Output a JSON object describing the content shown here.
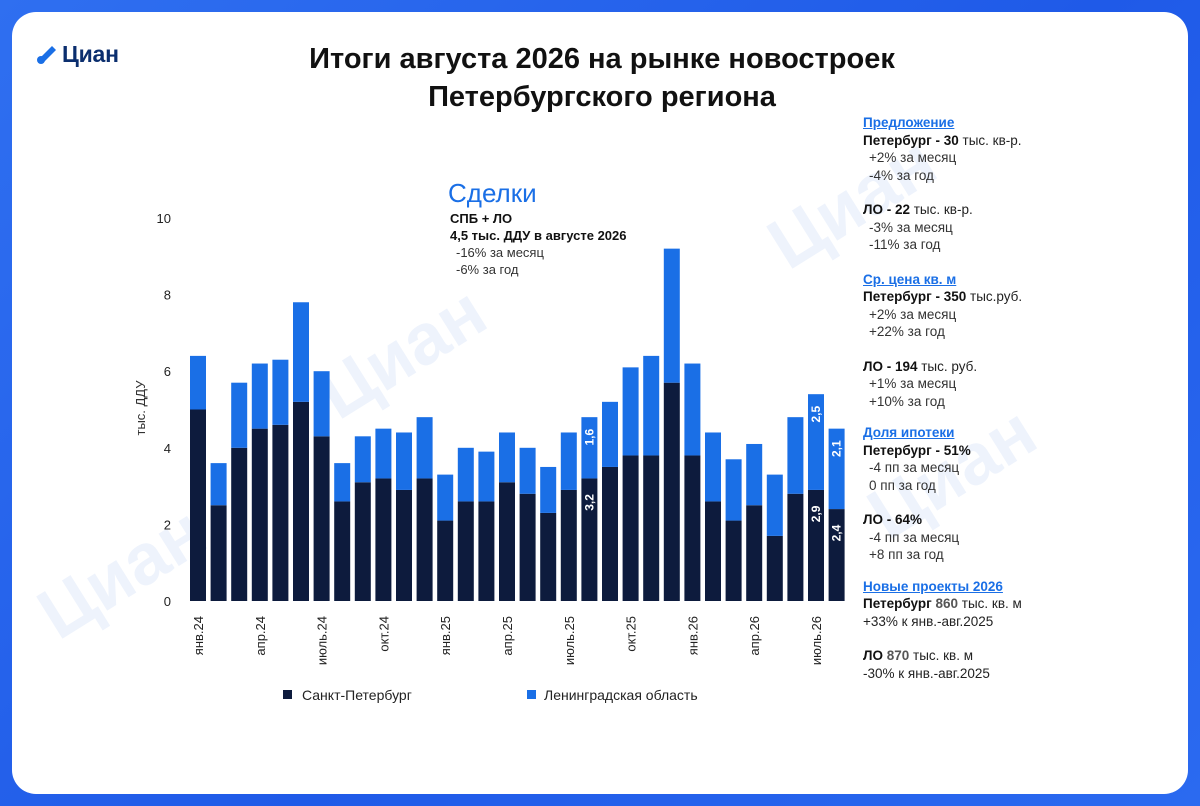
{
  "brand": {
    "name": "Циан"
  },
  "title": {
    "line1": "Итоги августа 2026 на рынке новостроек",
    "line2": "Петербургского региона"
  },
  "watermark": "Циан",
  "colors": {
    "spb": "#0d1b3d",
    "lo": "#1a6fe6",
    "accent": "#1a6fe6"
  },
  "chart_data": {
    "type": "bar",
    "stacked": true,
    "title": "Сделки",
    "ylabel": "тыс. ДДУ",
    "ylim": [
      0,
      10
    ],
    "yticks": [
      0,
      2,
      4,
      6,
      8,
      10
    ],
    "categories": [
      "янв.24",
      "фев.24",
      "мар.24",
      "апр.24",
      "май.24",
      "июн.24",
      "июль.24",
      "авг.24",
      "сен.24",
      "окт.24",
      "ноя.24",
      "дек.24",
      "янв.25",
      "фев.25",
      "мар.25",
      "апр.25",
      "май.25",
      "июн.25",
      "июль.25",
      "авг.25",
      "сен.25",
      "окт.25",
      "ноя.25",
      "дек.25",
      "янв.26",
      "фев.26",
      "мар.26",
      "апр.26",
      "май.26",
      "июн.26",
      "июль.26",
      "авг.26"
    ],
    "tick_labels": [
      {
        "index": 0,
        "label": "янв.24"
      },
      {
        "index": 3,
        "label": "апр.24"
      },
      {
        "index": 6,
        "label": "июль.24"
      },
      {
        "index": 9,
        "label": "окт.24"
      },
      {
        "index": 12,
        "label": "янв.25"
      },
      {
        "index": 15,
        "label": "апр.25"
      },
      {
        "index": 18,
        "label": "июль.25"
      },
      {
        "index": 21,
        "label": "окт.25"
      },
      {
        "index": 24,
        "label": "янв.26"
      },
      {
        "index": 27,
        "label": "апр.26"
      },
      {
        "index": 30,
        "label": "июль.26"
      }
    ],
    "series": [
      {
        "name": "Санкт-Петербург",
        "values": [
          5.0,
          2.5,
          4.0,
          4.5,
          4.6,
          5.2,
          4.3,
          2.6,
          3.1,
          3.2,
          2.9,
          3.2,
          2.1,
          2.6,
          2.6,
          3.1,
          2.8,
          2.3,
          2.9,
          3.2,
          3.5,
          3.8,
          3.8,
          5.7,
          3.8,
          2.6,
          2.1,
          2.5,
          1.7,
          2.8,
          2.9,
          2.4
        ]
      },
      {
        "name": "Ленинградская область",
        "values": [
          1.4,
          1.1,
          1.7,
          1.7,
          1.7,
          2.6,
          1.7,
          1.0,
          1.2,
          1.3,
          1.5,
          1.6,
          1.2,
          1.4,
          1.3,
          1.3,
          1.2,
          1.2,
          1.5,
          1.6,
          1.7,
          2.3,
          2.6,
          3.5,
          2.4,
          1.8,
          1.6,
          1.6,
          1.6,
          2.0,
          2.5,
          2.1
        ]
      }
    ],
    "data_labels": [
      {
        "index": 19,
        "series": 0,
        "text": "3,2"
      },
      {
        "index": 19,
        "series": 1,
        "text": "1,6"
      },
      {
        "index": 30,
        "series": 0,
        "text": "2,9"
      },
      {
        "index": 30,
        "series": 1,
        "text": "2,5"
      },
      {
        "index": 31,
        "series": 0,
        "text": "2,4"
      },
      {
        "index": 31,
        "series": 1,
        "text": "2,1"
      }
    ],
    "annotation": {
      "line1": "СПБ + ЛО",
      "line2": "4,5  тыс. ДДУ в  августе 2026",
      "line3": "-16% за месяц",
      "line4": "-6% за год"
    },
    "legend": [
      "Санкт-Петербург",
      "Ленинградская область"
    ],
    "legend_position": "bottom"
  },
  "side": {
    "supply": {
      "heading": "Предложение",
      "spb_label": "Петербург - 30",
      "spb_unit": " тыс. кв-р.",
      "spb_m": "+2% за месяц",
      "spb_y": "-4% за год",
      "lo_label": "ЛО - 22",
      "lo_unit": " тыс. кв-р.",
      "lo_m": "-3% за месяц",
      "lo_y": "-11% за год"
    },
    "price": {
      "heading": "Ср. цена кв. м",
      "spb_label": "Петербург - 350",
      "spb_unit": " тыс.руб.",
      "spb_m": "+2% за месяц",
      "spb_y": "+22% за год",
      "lo_label": "ЛО - 194",
      "lo_unit": " тыс. руб.",
      "lo_m": "+1% за месяц",
      "lo_y": "+10% за год"
    },
    "mortgage": {
      "heading": "Доля ипотеки",
      "spb_label": "Петербург - 51%",
      "spb_m": "-4 пп за месяц",
      "spb_y": "0 пп за год",
      "lo_label": "ЛО - 64%",
      "lo_m": "-4 пп за месяц",
      "lo_y": "+8 пп за год"
    },
    "projects": {
      "heading": "Новые проекты 2026",
      "spb_label": "Петербург",
      "spb_num": " 860",
      "spb_unit": " тыс. кв. м",
      "spb_ch": "+33% к янв.-авг.2025",
      "lo_label": "ЛО",
      "lo_num": " 870",
      "lo_unit": " тыс. кв. м",
      "lo_ch": "-30% к янв.-авг.2025"
    }
  }
}
